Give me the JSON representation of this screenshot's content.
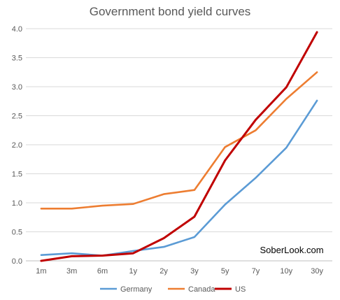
{
  "chart_data": {
    "type": "line",
    "title": "Government bond yield curves",
    "categories": [
      "1m",
      "3m",
      "6m",
      "1y",
      "2y",
      "3y",
      "5y",
      "7y",
      "10y",
      "30y"
    ],
    "series": [
      {
        "name": "Germany",
        "color": "#5b9bd5",
        "values": [
          0.1,
          0.13,
          0.09,
          0.17,
          0.24,
          0.41,
          0.97,
          1.43,
          1.95,
          2.76
        ]
      },
      {
        "name": "Canada",
        "color": "#ed7d31",
        "values": [
          0.9,
          0.9,
          0.95,
          0.98,
          1.15,
          1.22,
          1.96,
          2.25,
          2.79,
          3.25
        ]
      },
      {
        "name": "US",
        "color": "#c00000",
        "values": [
          0.0,
          0.08,
          0.09,
          0.13,
          0.39,
          0.76,
          1.73,
          2.43,
          2.99,
          3.94
        ]
      }
    ],
    "yticks": [
      "0.0",
      "0.5",
      "1.0",
      "1.5",
      "2.0",
      "2.5",
      "3.0",
      "3.5",
      "4.0"
    ],
    "ylim": [
      0,
      4
    ],
    "grid": true,
    "legend_position": "bottom",
    "annotation": "SoberLook.com"
  }
}
